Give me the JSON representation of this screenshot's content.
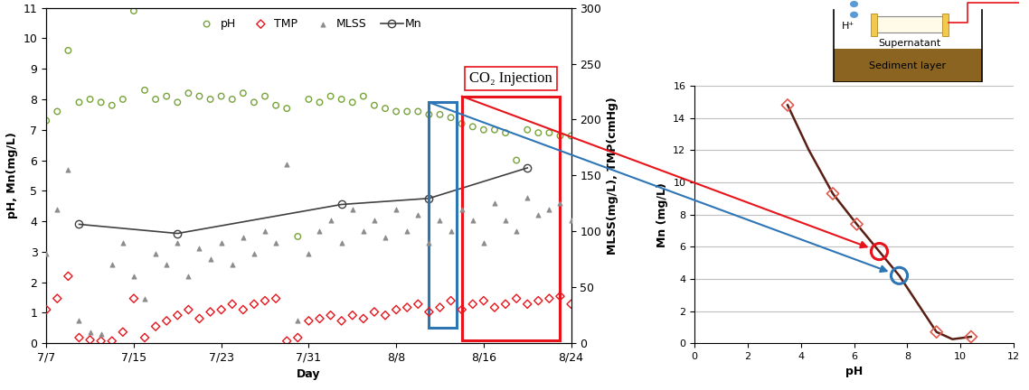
{
  "chart_data": [
    {
      "type": "scatter",
      "x_label": "Day",
      "y_label": "pH, Mn(mg/L)",
      "y2_label": "MLSS(mg/L), TMP(cmHg)",
      "x": [
        0,
        1,
        2,
        3,
        4,
        5,
        6,
        7,
        8,
        9,
        10,
        11,
        12,
        13,
        14,
        15,
        16,
        17,
        18,
        19,
        20,
        21,
        22,
        23,
        24,
        25,
        26,
        27,
        28,
        29,
        30,
        31,
        32,
        33,
        34,
        35,
        36,
        37,
        38,
        39,
        40,
        41,
        42,
        43,
        44,
        45,
        46,
        47,
        48
      ],
      "xlim": [
        0,
        48
      ],
      "xticks": [
        {
          "value": 0,
          "label": "7/7"
        },
        {
          "value": 8,
          "label": "7/15"
        },
        {
          "value": 16,
          "label": "7/23"
        },
        {
          "value": 24,
          "label": "7/31"
        },
        {
          "value": 32,
          "label": "8/8"
        },
        {
          "value": 40,
          "label": "8/16"
        },
        {
          "value": 48,
          "label": "8/24"
        }
      ],
      "ylim": [
        0,
        11
      ],
      "yticks": [
        0,
        1,
        2,
        3,
        4,
        5,
        6,
        7,
        8,
        9,
        10,
        11
      ],
      "y2lim": [
        0,
        300
      ],
      "y2ticks": [
        0,
        50,
        100,
        150,
        200,
        250,
        300
      ],
      "legend": "upper center",
      "grid": false,
      "series": [
        {
          "name": "pH",
          "color": "#77a33a",
          "marker": "circle",
          "values": [
            7.3,
            7.6,
            9.6,
            7.9,
            8.0,
            7.9,
            7.8,
            8.0,
            10.9,
            8.3,
            8.0,
            8.1,
            7.9,
            8.2,
            8.1,
            8.0,
            8.1,
            8.0,
            8.2,
            7.9,
            8.1,
            7.8,
            7.7,
            3.5,
            8.0,
            7.9,
            8.1,
            8.0,
            7.9,
            8.1,
            7.8,
            7.7,
            7.6,
            7.6,
            7.6,
            7.5,
            7.5,
            7.4,
            7.2,
            7.1,
            7.0,
            7.0,
            6.9,
            6.0,
            7.0,
            6.9,
            6.9,
            6.8,
            6.8
          ]
        },
        {
          "name": "TMP",
          "color": "#e8141b",
          "marker": "diamond",
          "axis": "y2",
          "values": [
            30,
            40,
            60,
            5,
            3,
            2,
            2,
            10,
            40,
            5,
            15,
            20,
            25,
            30,
            22,
            28,
            30,
            35,
            30,
            35,
            38,
            40,
            2,
            5,
            20,
            22,
            25,
            20,
            25,
            22,
            28,
            25,
            30,
            32,
            35,
            28,
            32,
            38,
            30,
            35,
            38,
            32,
            35,
            40,
            35,
            38,
            40,
            42,
            35
          ]
        },
        {
          "name": "MLSS",
          "color": "#8c8c8c",
          "marker": "triangle",
          "axis": "y2",
          "values": [
            80,
            120,
            155,
            20,
            10,
            8,
            70,
            90,
            60,
            40,
            80,
            70,
            90,
            60,
            85,
            75,
            90,
            70,
            95,
            80,
            100,
            90,
            160,
            20,
            80,
            100,
            110,
            90,
            120,
            100,
            110,
            95,
            120,
            100,
            115,
            90,
            110,
            100,
            120,
            110,
            90,
            125,
            110,
            100,
            130,
            115,
            120,
            125,
            110
          ]
        },
        {
          "name": "Mn",
          "color": "#404040",
          "marker": "circle",
          "line_style": "solid",
          "x": [
            3,
            12,
            27,
            35,
            44
          ],
          "values": [
            3.9,
            3.6,
            4.55,
            4.75,
            5.75
          ]
        }
      ],
      "regions": [
        {
          "x": [
            35,
            37.5
          ],
          "y": [
            0.5,
            7.9
          ],
          "color": "#2e75b6"
        },
        {
          "x": [
            38,
            47
          ],
          "y": [
            0.1,
            8.1
          ],
          "color": "#e8141b",
          "label": "CO₂ Injection"
        }
      ]
    },
    {
      "type": "line",
      "x_label": "pH",
      "y_label": "Mn (mg/L)",
      "xlim": [
        0,
        12
      ],
      "xticks": [
        0,
        2,
        4,
        6,
        8,
        10,
        12
      ],
      "ylim": [
        0,
        16
      ],
      "yticks": [
        0,
        2,
        4,
        6,
        8,
        10,
        12,
        14,
        16
      ],
      "grid": "y",
      "series": [
        {
          "type": "line",
          "color": "#5a1e14",
          "x": [
            3.5,
            4.3,
            5.2,
            6.1,
            6.95,
            7.7,
            8.5,
            9.1,
            9.7,
            10.4
          ],
          "values": [
            14.8,
            12.0,
            9.3,
            7.4,
            5.7,
            4.2,
            2.2,
            0.7,
            0.25,
            0.4
          ]
        },
        {
          "type": "scatter",
          "color": "#e05a4e",
          "marker": "diamond",
          "x": [
            3.5,
            5.2,
            6.1,
            9.1,
            10.4
          ],
          "values": [
            14.8,
            9.3,
            7.4,
            0.7,
            0.4
          ]
        }
      ],
      "highlights": [
        {
          "x": 7.7,
          "y": 4.2,
          "color": "#2e75b6"
        },
        {
          "x": 6.95,
          "y": 5.7,
          "color": "#e8141b"
        }
      ]
    }
  ],
  "inset_diagram": {
    "labels": [
      "H⁺",
      "Supernatant",
      "Sediment layer"
    ]
  }
}
